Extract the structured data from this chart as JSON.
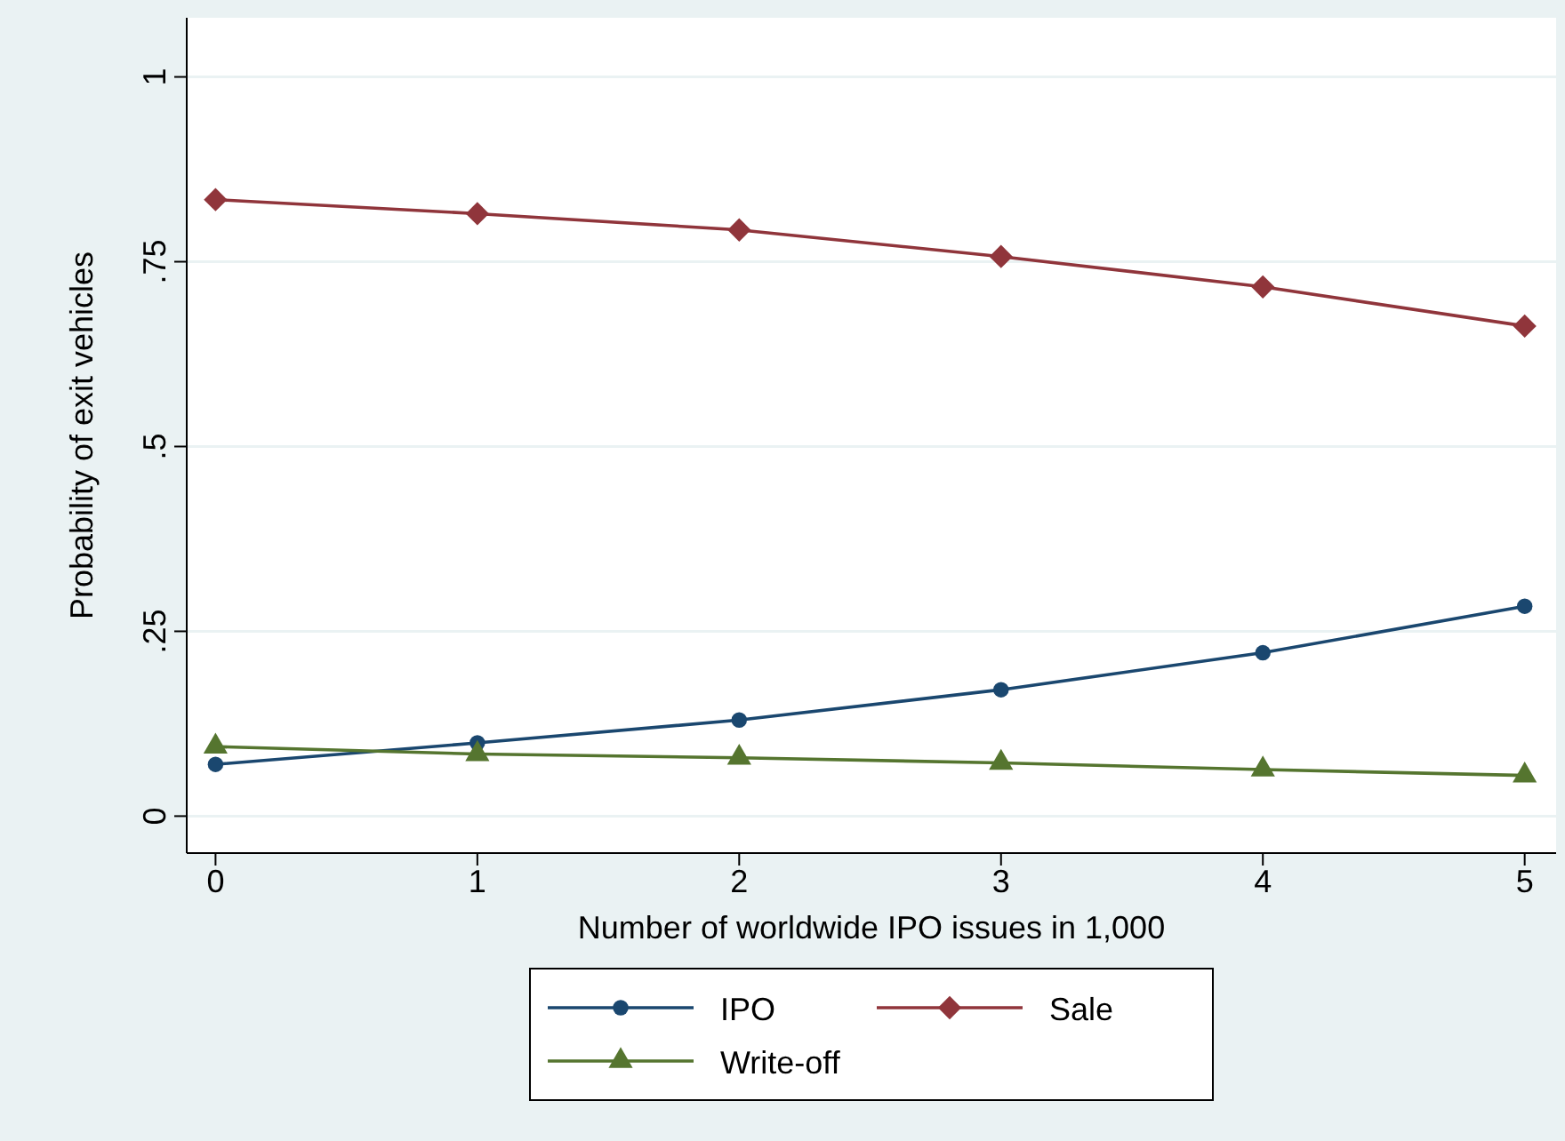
{
  "chart_data": {
    "type": "line",
    "xlabel": "Number of worldwide IPO issues in 1,000",
    "ylabel": "Probability of exit vehicles",
    "x": [
      0,
      1,
      2,
      3,
      4,
      5
    ],
    "xlim": [
      -0.11,
      5.12
    ],
    "xticks": [
      0,
      1,
      2,
      3,
      4,
      5
    ],
    "ylim": [
      -0.05,
      1.08
    ],
    "yticks": [
      0,
      {
        "value": 0.25,
        "label": ".25"
      },
      {
        "value": 0.5,
        "label": ".5"
      },
      {
        "value": 0.75,
        "label": ".75"
      },
      1
    ],
    "grid": "y",
    "legend": "bottom",
    "series": [
      {
        "name": "IPO",
        "color": "#1a476f",
        "marker": "circle",
        "values": [
          0.07,
          0.099,
          0.13,
          0.171,
          0.221,
          0.284
        ]
      },
      {
        "name": "Sale",
        "color": "#90353b",
        "marker": "diamond",
        "values": [
          0.834,
          0.815,
          0.793,
          0.757,
          0.716,
          0.663
        ]
      },
      {
        "name": "Write-off",
        "color": "#55752f",
        "marker": "triangle",
        "values": [
          0.094,
          0.084,
          0.079,
          0.072,
          0.063,
          0.055
        ]
      }
    ]
  }
}
